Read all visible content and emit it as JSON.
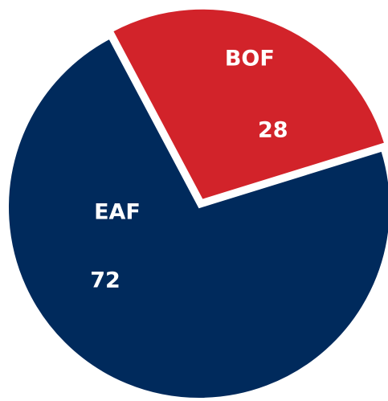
{
  "chart_data": {
    "type": "pie",
    "categories": [
      "BOF",
      "EAF"
    ],
    "values": [
      28,
      72
    ],
    "colors": [
      "#d2232a",
      "#002a5c"
    ],
    "exploded": [
      true,
      false
    ]
  }
}
